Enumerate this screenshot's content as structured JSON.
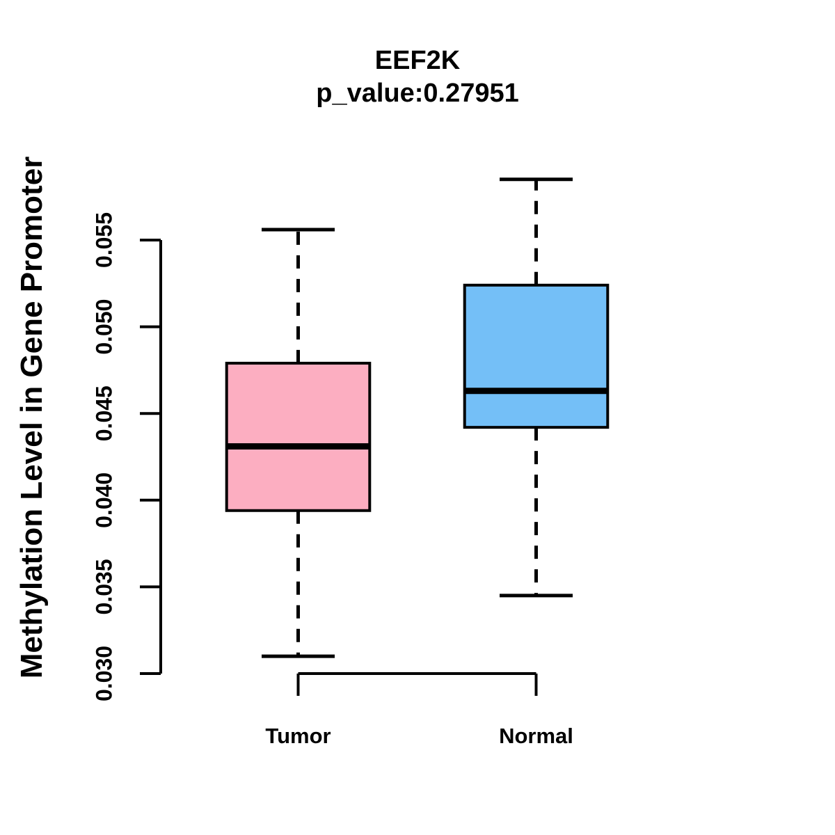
{
  "chart_data": {
    "type": "boxplot",
    "title": "EEF2K",
    "subtitle": "p_value:0.27951",
    "p_value": 0.27951,
    "ylabel": "Methylation Level in Gene Promoter",
    "categories": [
      "Tumor",
      "Normal"
    ],
    "series": [
      {
        "name": "Tumor",
        "color": "#FCAEC1",
        "lower_whisker": 0.031,
        "q1": 0.0394,
        "median": 0.0431,
        "q3": 0.0479,
        "upper_whisker": 0.0556
      },
      {
        "name": "Normal",
        "color": "#74BFF7",
        "lower_whisker": 0.0345,
        "q1": 0.0442,
        "median": 0.0463,
        "q3": 0.0524,
        "upper_whisker": 0.0585
      }
    ],
    "ylim": [
      0.03,
      0.055
    ],
    "yticks": [
      0.03,
      0.035,
      0.04,
      0.045,
      0.05,
      0.055
    ],
    "ytick_labels": [
      "0.030",
      "0.035",
      "0.040",
      "0.045",
      "0.050",
      "0.055"
    ],
    "grid": false,
    "legend": "none",
    "background_color": "#FFFFFF",
    "axis_color": "#000000",
    "box_edge_color": "#000000",
    "median_color": "#000000",
    "whisker_style": "dashed"
  }
}
